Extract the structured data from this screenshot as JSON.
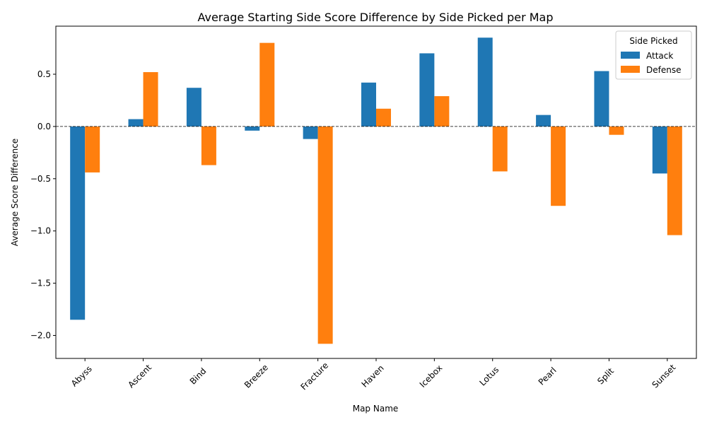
{
  "chart_data": {
    "type": "bar",
    "title": "Average Starting Side Score Difference by Side Picked per Map",
    "xlabel": "Map Name",
    "ylabel": "Average Score Difference",
    "ylim": [
      -2.22,
      0.96
    ],
    "yticks": [
      -2.0,
      -1.5,
      -1.0,
      -0.5,
      0.0,
      0.5
    ],
    "ytick_labels": [
      "−2.0",
      "−1.5",
      "−1.0",
      "−0.5",
      "0.0",
      "0.5"
    ],
    "categories": [
      "Abyss",
      "Ascent",
      "Bind",
      "Breeze",
      "Fracture",
      "Haven",
      "Icebox",
      "Lotus",
      "Pearl",
      "Split",
      "Sunset"
    ],
    "series": [
      {
        "name": "Attack",
        "color": "#1f77b4",
        "values": [
          -1.85,
          0.07,
          0.37,
          -0.04,
          -0.12,
          0.42,
          0.7,
          0.85,
          0.11,
          0.53,
          -0.45
        ]
      },
      {
        "name": "Defense",
        "color": "#ff7f0e",
        "values": [
          -0.44,
          0.52,
          -0.37,
          0.8,
          -2.08,
          0.17,
          0.29,
          -0.43,
          -0.76,
          -0.08,
          -1.04
        ]
      }
    ],
    "legend": {
      "title": "Side Picked",
      "position": "top-right"
    },
    "reference_line": {
      "y": 0,
      "style": "dashed",
      "color": "#000000"
    },
    "grid": false
  }
}
